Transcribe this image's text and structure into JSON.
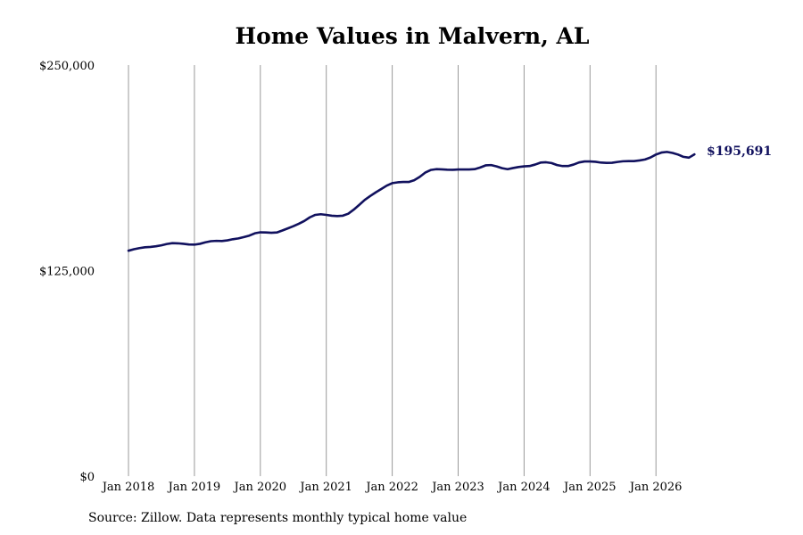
{
  "chart_data": {
    "type": "line",
    "title": "Home Values in Malvern, AL",
    "xlabel": "",
    "ylabel": "",
    "ylim": [
      0,
      250000
    ],
    "y_ticks": [
      0,
      125000,
      250000
    ],
    "y_tick_labels": [
      "$0",
      "$125,000",
      "$250,000"
    ],
    "x_ticks": [
      "2018-01",
      "2019-01",
      "2020-01",
      "2021-01",
      "2022-01",
      "2023-01",
      "2024-01",
      "2025-01",
      "2026-01"
    ],
    "x_tick_labels": [
      "Jan 2018",
      "Jan 2019",
      "Jan 2020",
      "Jan 2021",
      "Jan 2022",
      "Jan 2023",
      "Jan 2024",
      "Jan 2025",
      "Jan 2026"
    ],
    "grid": "vertical",
    "series": [
      {
        "color": "#11115e",
        "x": [
          "2018-01",
          "2018-02",
          "2018-03",
          "2018-04",
          "2018-05",
          "2018-06",
          "2018-07",
          "2018-08",
          "2018-09",
          "2018-10",
          "2018-11",
          "2018-12",
          "2019-01",
          "2019-02",
          "2019-03",
          "2019-04",
          "2019-05",
          "2019-06",
          "2019-07",
          "2019-08",
          "2019-09",
          "2019-10",
          "2019-11",
          "2019-12",
          "2020-01",
          "2020-02",
          "2020-03",
          "2020-04",
          "2020-05",
          "2020-06",
          "2020-07",
          "2020-08",
          "2020-09",
          "2020-10",
          "2020-11",
          "2020-12",
          "2021-01",
          "2021-02",
          "2021-03",
          "2021-04",
          "2021-05",
          "2021-06",
          "2021-07",
          "2021-08",
          "2021-09",
          "2021-10",
          "2021-11",
          "2021-12",
          "2022-01",
          "2022-02",
          "2022-03",
          "2022-04",
          "2022-05",
          "2022-06",
          "2022-07",
          "2022-08",
          "2022-09",
          "2022-10",
          "2022-11",
          "2022-12",
          "2023-01",
          "2023-02",
          "2023-03",
          "2023-04",
          "2023-05",
          "2023-06",
          "2023-07",
          "2023-08",
          "2023-09",
          "2023-10",
          "2023-11",
          "2023-12",
          "2024-01",
          "2024-02",
          "2024-03",
          "2024-04",
          "2024-05",
          "2024-06",
          "2024-07",
          "2024-08",
          "2024-09",
          "2024-10",
          "2024-11",
          "2024-12",
          "2025-01",
          "2025-02",
          "2025-03",
          "2025-04",
          "2025-05",
          "2025-06",
          "2025-07",
          "2025-08",
          "2025-09",
          "2025-10",
          "2025-11",
          "2025-12",
          "2026-01",
          "2026-02",
          "2026-03",
          "2026-04",
          "2026-05",
          "2026-06",
          "2026-07",
          "2026-08"
        ],
        "values": [
          137100,
          138000,
          138700,
          139200,
          139400,
          139800,
          140400,
          141200,
          141700,
          141600,
          141300,
          140900,
          140800,
          141300,
          142200,
          142900,
          143100,
          143000,
          143400,
          144100,
          144600,
          145400,
          146300,
          147700,
          148300,
          148200,
          148000,
          148200,
          149400,
          150700,
          152000,
          153500,
          155200,
          157400,
          158900,
          159300,
          158900,
          158400,
          158200,
          158400,
          159600,
          162100,
          165000,
          168000,
          170400,
          172600,
          174600,
          176700,
          178200,
          178700,
          178900,
          178900,
          180000,
          182000,
          184600,
          186200,
          186700,
          186600,
          186400,
          186300,
          186500,
          186500,
          186500,
          186700,
          187700,
          189000,
          189200,
          188400,
          187300,
          186700,
          187400,
          188000,
          188400,
          188600,
          189500,
          190700,
          190900,
          190400,
          189200,
          188600,
          188600,
          189500,
          190800,
          191400,
          191400,
          191200,
          190700,
          190500,
          190600,
          191100,
          191500,
          191600,
          191600,
          192000,
          192600,
          193800,
          195600,
          196800,
          197200,
          196600,
          195600,
          194200,
          193700,
          195691
        ]
      }
    ],
    "end_label": "$195,691"
  },
  "source_note": "Source: Zillow. Data represents monthly typical home value"
}
